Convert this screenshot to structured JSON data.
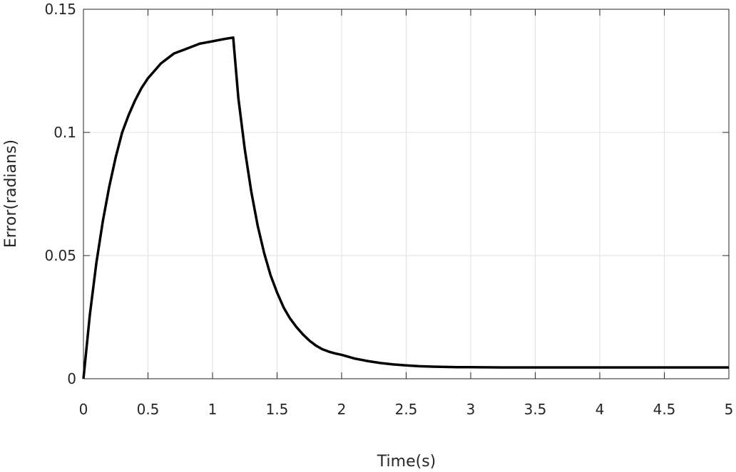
{
  "chart_data": {
    "type": "line",
    "title": "",
    "xlabel": "Time(s)",
    "ylabel": "Error(radians)",
    "xlim": [
      0,
      5
    ],
    "ylim": [
      0,
      0.15
    ],
    "grid": true,
    "box": true,
    "xticks": [
      0,
      0.5,
      1,
      1.5,
      2,
      2.5,
      3,
      3.5,
      4,
      4.5,
      5
    ],
    "xtick_labels": [
      "0",
      "0.5",
      "1",
      "1.5",
      "2",
      "2.5",
      "3",
      "3.5",
      "4",
      "4.5",
      "5"
    ],
    "yticks": [
      0,
      0.05,
      0.1,
      0.15
    ],
    "ytick_labels": [
      "0",
      "0.05",
      "0.1",
      "0.15"
    ],
    "series": [
      {
        "color": "#000000",
        "x": [
          0,
          0.05,
          0.1,
          0.15,
          0.2,
          0.25,
          0.3,
          0.35,
          0.4,
          0.45,
          0.5,
          0.55,
          0.6,
          0.65,
          0.7,
          0.75,
          0.8,
          0.85,
          0.9,
          0.95,
          1.0,
          1.05,
          1.1,
          1.16,
          1.2,
          1.25,
          1.3,
          1.35,
          1.4,
          1.45,
          1.5,
          1.55,
          1.6,
          1.65,
          1.7,
          1.75,
          1.8,
          1.85,
          1.9,
          1.95,
          2.0,
          2.1,
          2.2,
          2.3,
          2.4,
          2.5,
          2.6,
          2.7,
          2.8,
          2.9,
          3.0,
          3.25,
          3.5,
          3.75,
          4.0,
          4.25,
          4.5,
          4.75,
          5.0
        ],
        "y": [
          0,
          0.026,
          0.047,
          0.064,
          0.078,
          0.09,
          0.1,
          0.107,
          0.113,
          0.118,
          0.122,
          0.125,
          0.128,
          0.13,
          0.132,
          0.133,
          0.134,
          0.135,
          0.136,
          0.1365,
          0.137,
          0.1375,
          0.138,
          0.1385,
          0.114,
          0.093,
          0.076,
          0.062,
          0.051,
          0.042,
          0.035,
          0.029,
          0.0245,
          0.021,
          0.018,
          0.0155,
          0.0135,
          0.012,
          0.011,
          0.0103,
          0.0097,
          0.0082,
          0.0072,
          0.0064,
          0.0058,
          0.0054,
          0.0051,
          0.0049,
          0.0048,
          0.0047,
          0.0047,
          0.0046,
          0.0046,
          0.0046,
          0.0046,
          0.0046,
          0.0046,
          0.0046,
          0.0046
        ]
      }
    ]
  }
}
